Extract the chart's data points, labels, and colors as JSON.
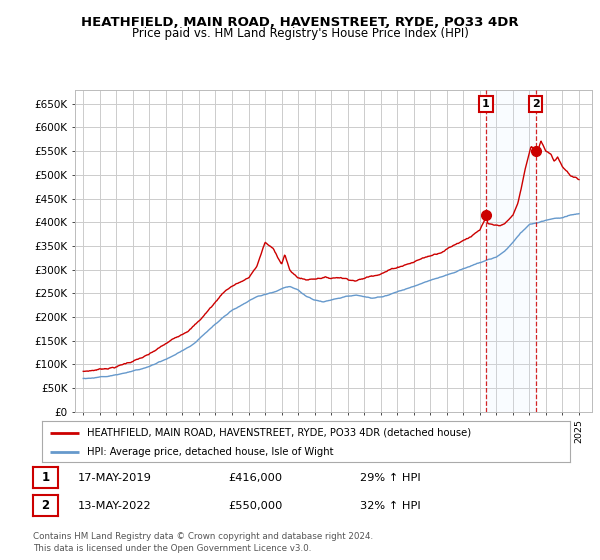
{
  "title": "HEATHFIELD, MAIN ROAD, HAVENSTREET, RYDE, PO33 4DR",
  "subtitle": "Price paid vs. HM Land Registry's House Price Index (HPI)",
  "legend_line1": "HEATHFIELD, MAIN ROAD, HAVENSTREET, RYDE, PO33 4DR (detached house)",
  "legend_line2": "HPI: Average price, detached house, Isle of Wight",
  "annotation1_date": "17-MAY-2019",
  "annotation1_price": "£416,000",
  "annotation1_hpi": "29% ↑ HPI",
  "annotation2_date": "13-MAY-2022",
  "annotation2_price": "£550,000",
  "annotation2_hpi": "32% ↑ HPI",
  "footer": "Contains HM Land Registry data © Crown copyright and database right 2024.\nThis data is licensed under the Open Government Licence v3.0.",
  "red_color": "#cc0000",
  "blue_color": "#6699cc",
  "background_color": "#ffffff",
  "plot_bg_color": "#ffffff",
  "grid_color": "#cccccc",
  "span_color": "#ddeeff",
  "ylim": [
    0,
    680000
  ],
  "ytick_vals": [
    0,
    50000,
    100000,
    150000,
    200000,
    250000,
    300000,
    350000,
    400000,
    450000,
    500000,
    550000,
    600000,
    650000
  ],
  "ytick_labels": [
    "£0",
    "£50K",
    "£100K",
    "£150K",
    "£200K",
    "£250K",
    "£300K",
    "£350K",
    "£400K",
    "£450K",
    "£500K",
    "£550K",
    "£600K",
    "£650K"
  ],
  "xlim_left": 1994.5,
  "xlim_right": 2025.8,
  "sale1_year": 2019.37,
  "sale1_value": 416000,
  "sale2_year": 2022.37,
  "sale2_value": 550000,
  "hpi_years": [
    1995,
    1995.5,
    1996,
    1996.5,
    1997,
    1997.5,
    1998,
    1998.5,
    1999,
    1999.5,
    2000,
    2000.5,
    2001,
    2001.5,
    2002,
    2002.5,
    2003,
    2003.5,
    2004,
    2004.5,
    2005,
    2005.5,
    2006,
    2006.5,
    2007,
    2007.5,
    2008,
    2008.5,
    2009,
    2009.5,
    2010,
    2010.5,
    2011,
    2011.5,
    2012,
    2012.5,
    2013,
    2013.5,
    2014,
    2014.5,
    2015,
    2015.5,
    2016,
    2016.5,
    2017,
    2017.5,
    2018,
    2018.5,
    2019,
    2019.5,
    2020,
    2020.5,
    2021,
    2021.5,
    2022,
    2022.5,
    2023,
    2023.5,
    2024,
    2024.5,
    2025
  ],
  "hpi_vals": [
    70000,
    72000,
    74000,
    75000,
    79000,
    82000,
    86000,
    90000,
    96000,
    103000,
    110000,
    118000,
    128000,
    138000,
    152000,
    168000,
    185000,
    200000,
    215000,
    225000,
    235000,
    245000,
    248000,
    252000,
    260000,
    265000,
    258000,
    245000,
    238000,
    234000,
    238000,
    242000,
    246000,
    248000,
    244000,
    242000,
    246000,
    252000,
    258000,
    264000,
    270000,
    276000,
    282000,
    288000,
    294000,
    300000,
    306000,
    312000,
    318000,
    324000,
    328000,
    340000,
    358000,
    378000,
    395000,
    400000,
    405000,
    408000,
    410000,
    415000,
    418000
  ],
  "red_years": [
    1995,
    1995.5,
    1996,
    1996.5,
    1997,
    1997.5,
    1998,
    1998.5,
    1999,
    1999.5,
    2000,
    2000.5,
    2001,
    2001.5,
    2002,
    2002.5,
    2003,
    2003.5,
    2004,
    2004.5,
    2005,
    2005.5,
    2006,
    2006.5,
    2007,
    2007.2,
    2007.5,
    2007.8,
    2008,
    2008.5,
    2009,
    2009.5,
    2010,
    2010.5,
    2011,
    2011.5,
    2012,
    2012.5,
    2013,
    2013.5,
    2014,
    2014.5,
    2015,
    2015.5,
    2016,
    2016.5,
    2017,
    2017.5,
    2018,
    2018.5,
    2019,
    2019.37,
    2019.5,
    2020,
    2020.5,
    2021,
    2021.3,
    2021.5,
    2021.7,
    2021.9,
    2022,
    2022.1,
    2022.37,
    2022.5,
    2022.7,
    2023,
    2023.3,
    2023.5,
    2023.7,
    2024,
    2024.3,
    2024.5,
    2024.8,
    2025
  ],
  "red_vals": [
    85000,
    87000,
    90000,
    93000,
    96000,
    102000,
    108000,
    114000,
    120000,
    130000,
    140000,
    150000,
    162000,
    175000,
    190000,
    210000,
    230000,
    252000,
    265000,
    273000,
    280000,
    305000,
    355000,
    340000,
    310000,
    330000,
    295000,
    285000,
    280000,
    275000,
    278000,
    282000,
    280000,
    283000,
    280000,
    278000,
    282000,
    288000,
    295000,
    302000,
    308000,
    315000,
    320000,
    328000,
    333000,
    340000,
    350000,
    360000,
    370000,
    380000,
    390000,
    416000,
    400000,
    395000,
    398000,
    415000,
    440000,
    470000,
    505000,
    535000,
    548000,
    560000,
    550000,
    550000,
    570000,
    550000,
    545000,
    530000,
    540000,
    520000,
    510000,
    500000,
    495000,
    490000
  ]
}
